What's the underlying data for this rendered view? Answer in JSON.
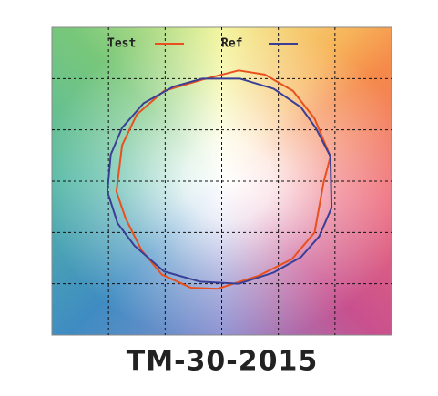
{
  "chart_data": {
    "type": "line",
    "title": "TM-30-2015",
    "xlim": [
      -1.5,
      1.5
    ],
    "ylim": [
      -1.5,
      1.5
    ],
    "xticks": [
      -1,
      -0.5,
      0,
      0.5,
      1
    ],
    "yticks": [
      -1,
      -0.5,
      0,
      0.5,
      1
    ],
    "grid": true,
    "legend": "top",
    "series": [
      {
        "name": "Test",
        "color": "#e8501e",
        "x": [
          -0.17,
          0.15,
          0.38,
          0.63,
          0.82,
          0.96,
          0.9,
          0.82,
          0.62,
          0.33,
          -0.04,
          -0.27,
          -0.53,
          -0.71,
          -0.85,
          -0.93,
          -0.88,
          -0.75,
          -0.51
        ],
        "values": [
          0.99,
          1.08,
          1.04,
          0.88,
          0.61,
          0.24,
          -0.01,
          -0.5,
          -0.76,
          -0.92,
          -1.05,
          -1.04,
          -0.91,
          -0.67,
          -0.36,
          -0.1,
          0.35,
          0.65,
          0.88
        ]
      },
      {
        "name": "Ref",
        "color": "#3a3f96",
        "x": [
          -0.17,
          0.16,
          0.46,
          0.7,
          0.83,
          0.96,
          0.97,
          0.86,
          0.7,
          0.46,
          0.15,
          -0.19,
          -0.51,
          -0.77,
          -0.92,
          -1.01,
          -0.98,
          -0.88,
          -0.69,
          -0.43
        ],
        "values": [
          1.0,
          1.0,
          0.9,
          0.72,
          0.52,
          0.24,
          -0.26,
          -0.54,
          -0.74,
          -0.89,
          -1.0,
          -0.98,
          -0.88,
          -0.63,
          -0.41,
          -0.1,
          0.26,
          0.52,
          0.76,
          0.92
        ]
      }
    ]
  }
}
